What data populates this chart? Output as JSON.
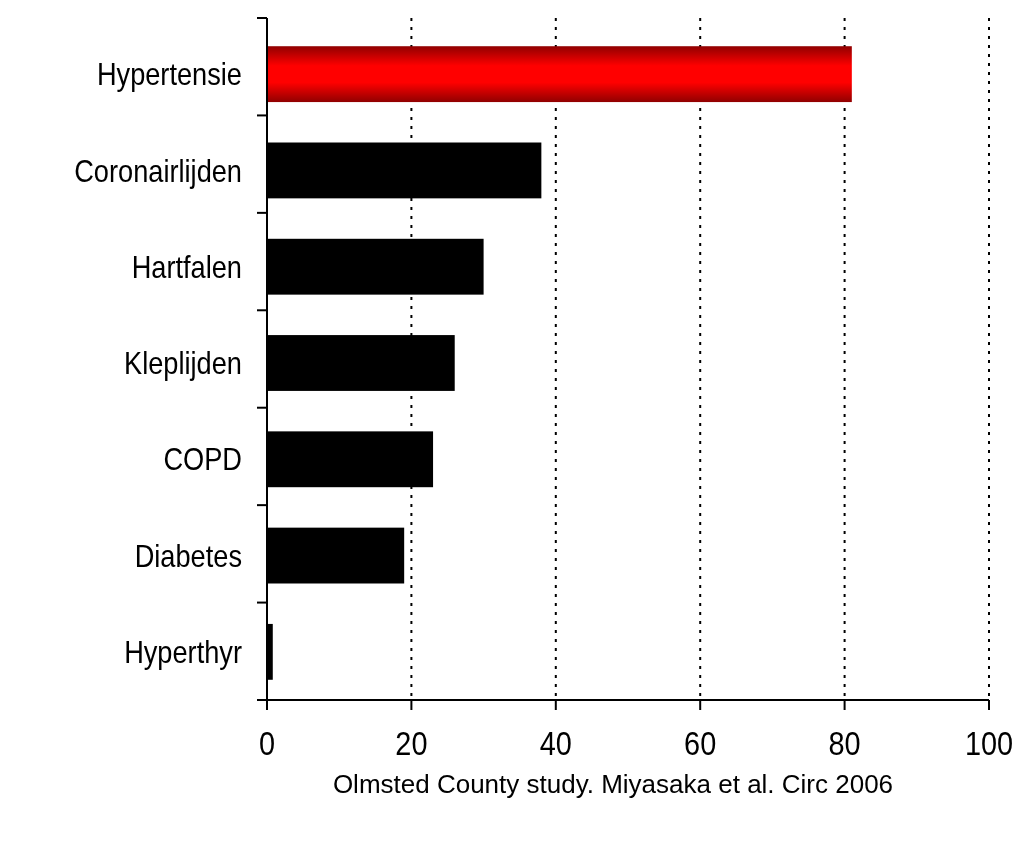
{
  "chart_data": {
    "type": "bar",
    "orientation": "horizontal",
    "categories": [
      "Hypertensie",
      "Coronairlijden",
      "Hartfalen",
      "Kleplijden",
      "COPD",
      "Diabetes",
      "Hyperthyr"
    ],
    "values": [
      81,
      38,
      30,
      26,
      23,
      19,
      0.8
    ],
    "colors": [
      "#ff0000",
      "#000000",
      "#000000",
      "#000000",
      "#000000",
      "#000000",
      "#000000"
    ],
    "xlim": [
      0,
      100
    ],
    "xticks": [
      0,
      20,
      40,
      60,
      80,
      100
    ],
    "grid": "x",
    "line_style": "dotted",
    "annotations": [
      "Olmsted County study. Miyasaka et al. Circ 2006"
    ]
  }
}
